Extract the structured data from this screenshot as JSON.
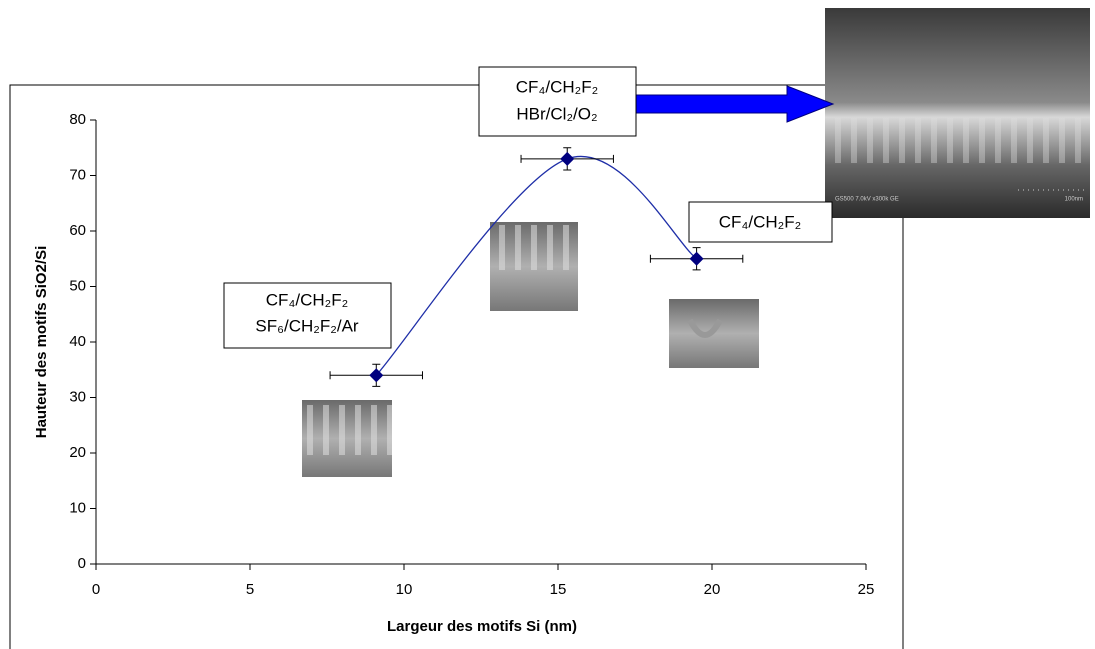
{
  "chart_data": {
    "type": "scatter",
    "xlabel": "Largeur des motifs Si (nm)",
    "ylabel": "Hauteur des motifs SiO2/Si",
    "x": [
      9.1,
      15.3,
      19.5
    ],
    "series": [
      {
        "color": "#00007f",
        "line_color": "#1f2fa8",
        "values": [
          34,
          73,
          55
        ],
        "x_err": [
          1.5,
          1.5,
          1.5
        ],
        "y_err": [
          2,
          2,
          2
        ]
      }
    ],
    "xlim": [
      0,
      25
    ],
    "xticks": [
      0,
      5,
      10,
      15,
      20,
      25
    ],
    "ylim": [
      0,
      80
    ],
    "yticks": [
      0,
      10,
      20,
      30,
      40,
      50,
      60,
      70,
      80
    ],
    "grid": false,
    "annotations": [
      {
        "lines": [
          "CF₄/CH₂F₂",
          "SF₆/CH₂F₂/Ar"
        ]
      },
      {
        "lines": [
          "CF₄/CH₂F₂",
          "HBr/Cl₂/O₂"
        ]
      },
      {
        "lines": [
          "CF₄/CH₂F₂"
        ]
      }
    ],
    "image_caption": [
      "GS500 7.0kV x300k GE",
      "100nm"
    ]
  }
}
